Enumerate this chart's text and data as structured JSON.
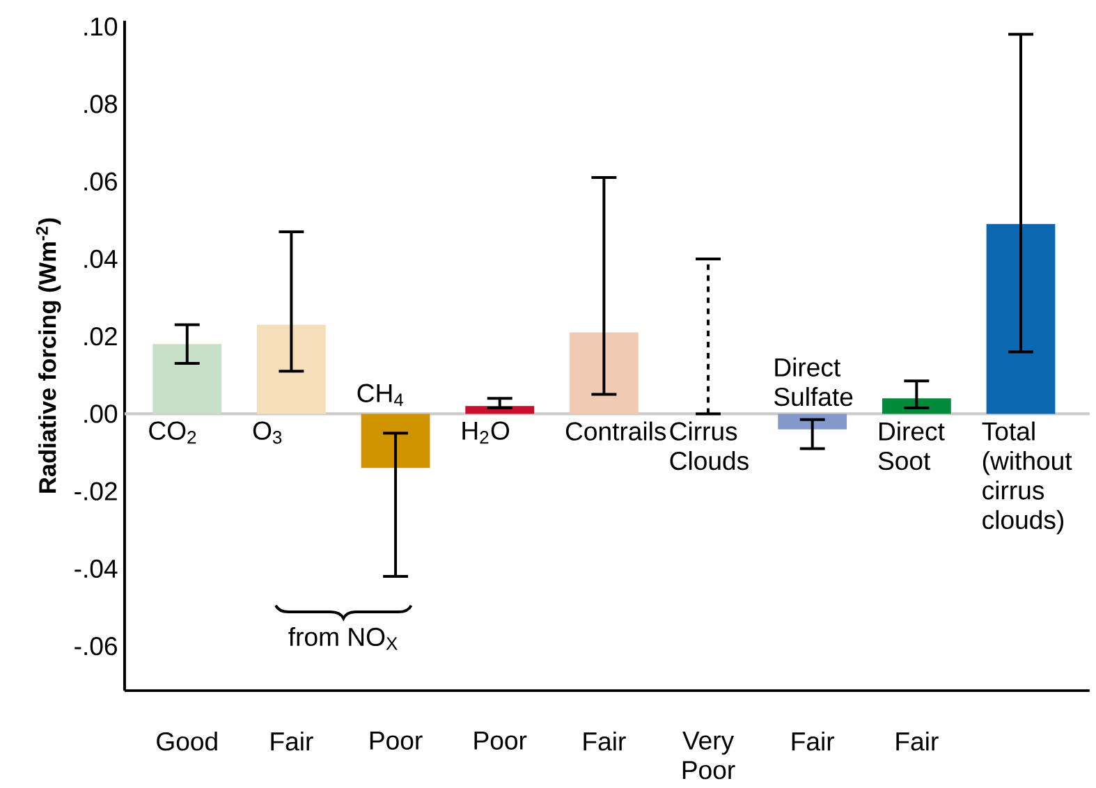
{
  "chart_data": {
    "type": "bar",
    "ylabel": "Radiative forcing (Wm$^{-2}$)",
    "categories": [
      "CO$_{2}$",
      "O$_{3}$",
      "CH$_{4}$",
      "H$_{2}$O",
      "Contrails",
      "Cirrus Clouds",
      "Direct Sulfate",
      "Direct Soot",
      "Total (without cirrus clouds)"
    ],
    "values": [
      0.018,
      0.023,
      -0.014,
      0.002,
      0.021,
      0.0,
      -0.004,
      0.004,
      0.049
    ],
    "colors": [
      "#c8dfc8",
      "#f5dfbb",
      "#d09400",
      "#c8102e",
      "#f0cab2",
      "#aaaaaa",
      "#8399cc",
      "#008a3a",
      "#0b67b0"
    ],
    "errors": [
      [
        0.013,
        0.023
      ],
      [
        0.011,
        0.047
      ],
      [
        -0.042,
        -0.005
      ],
      [
        0.0015,
        0.004
      ],
      [
        0.005,
        0.061
      ],
      [
        0.0,
        0.04
      ],
      [
        -0.009,
        -0.0015
      ],
      [
        0.0015,
        0.0085
      ],
      [
        0.016,
        0.098
      ]
    ],
    "ylim": [
      -0.0715,
      0.1015
    ],
    "yticks": [
      {
        "value": -0.06,
        "label": "-.06"
      },
      {
        "value": -0.04,
        "label": "-.04"
      },
      {
        "value": -0.02,
        "label": "-.02"
      },
      {
        "value": 0.0,
        "label": ".00"
      },
      {
        "value": 0.02,
        "label": ".02"
      },
      {
        "value": 0.04,
        "label": ".04"
      },
      {
        "value": 0.06,
        "label": ".06"
      },
      {
        "value": 0.08,
        "label": ".08"
      },
      {
        "value": 0.1,
        "label": ".10"
      }
    ],
    "annotations": [
      "Good",
      "Fair",
      "Poor",
      "Poor",
      "Fair",
      "Very Poor",
      "Fair",
      "Fair",
      "from NO$_{X}$"
    ]
  }
}
